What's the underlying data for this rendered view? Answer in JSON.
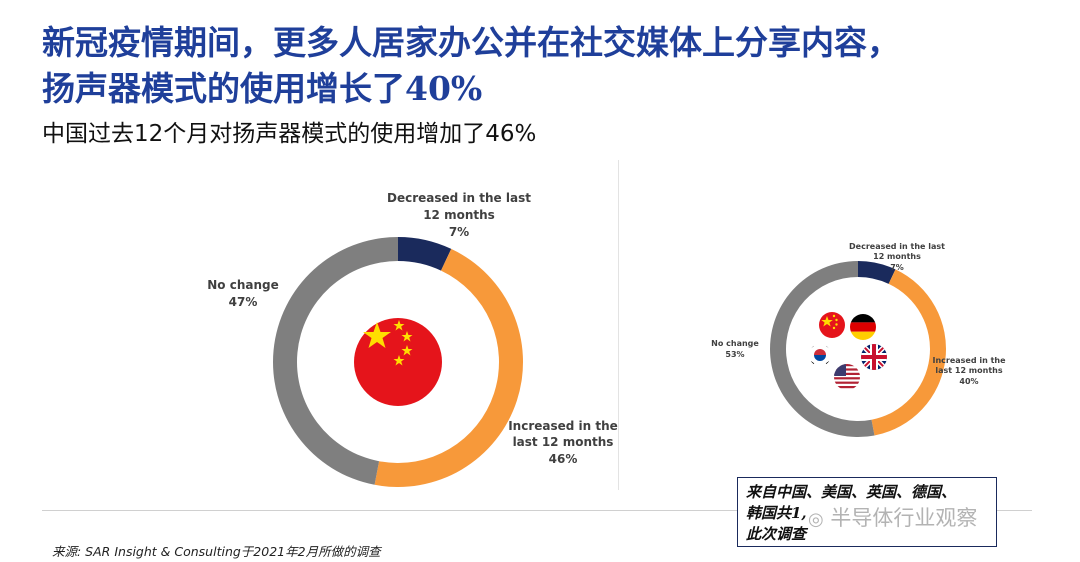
{
  "header": {
    "title_line1": "新冠疫情期间，更多人居家办公并在社交媒体上分享内容，",
    "title_line2": "扬声器模式的使用增长了40%",
    "subtitle": "中国过去12个月对扬声器模式的使用增加了46%"
  },
  "chart_data": [
    {
      "type": "pie",
      "donut": true,
      "slices": [
        {
          "label": [
            "Decreased in the last",
            "12 months"
          ],
          "value": 7,
          "display": "7%",
          "color": "#1a2a5c"
        },
        {
          "label": [
            "Increased in the",
            "last 12 months"
          ],
          "value": 46,
          "display": "46%",
          "color": "#f7993a"
        },
        {
          "label": [
            "No change"
          ],
          "value": 47,
          "display": "47%",
          "color": "#7f7f7f"
        }
      ],
      "center_icon": "china-flag-icon"
    },
    {
      "type": "pie",
      "donut": true,
      "slices": [
        {
          "label": [
            "Decreased in the last",
            "12 months"
          ],
          "value": 7,
          "display": "7%",
          "color": "#1a2a5c"
        },
        {
          "label": [
            "Increased in the",
            "last 12 months"
          ],
          "value": 40,
          "display": "40%",
          "color": "#f7993a"
        },
        {
          "label": [
            "No change"
          ],
          "value": 53,
          "display": "53%",
          "color": "#7f7f7f"
        }
      ],
      "center_icons": [
        "china-flag-icon",
        "germany-flag-icon",
        "korea-flag-icon",
        "uk-flag-icon",
        "usa-flag-icon"
      ]
    }
  ],
  "note": {
    "line1": "来自中国、美国、英国、德国、",
    "line2": "韩国共1,",
    "line3": "此次调查"
  },
  "watermark": "半导体行业观察",
  "source": "来源: SAR Insight & Consulting于2021年2月所做的调查"
}
